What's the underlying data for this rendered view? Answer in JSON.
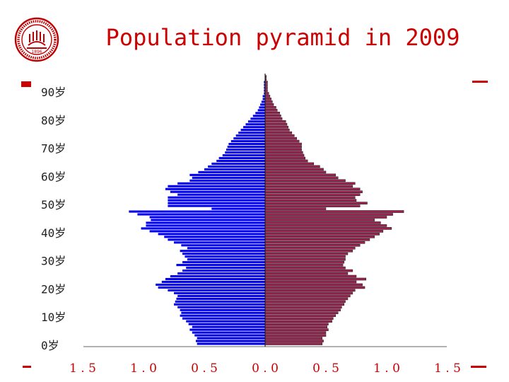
{
  "slide": {
    "title": "Population pyramid in 2009",
    "accent_color": "#cc0000",
    "logo": {
      "icon": "university-seal-icon",
      "ring_text": "SHANGHAI JIAO TONG UNIVERSITY",
      "year": "1896"
    }
  },
  "chart_data": {
    "type": "bar",
    "orientation": "horizontal",
    "layout": "population-pyramid",
    "title": "Population pyramid in 2009",
    "y_tick_labels": [
      "0岁",
      "10岁",
      "20岁",
      "30岁",
      "40岁",
      "50岁",
      "60岁",
      "70岁",
      "80岁",
      "90岁"
    ],
    "x_tick_labels": [
      "1.5",
      "1.0",
      "0.5",
      "0.0",
      "0.5",
      "1.0",
      "1.5"
    ],
    "xlim": [
      -1.5,
      1.5
    ],
    "ages": [
      0,
      1,
      2,
      3,
      4,
      5,
      6,
      7,
      8,
      9,
      10,
      11,
      12,
      13,
      14,
      15,
      16,
      17,
      18,
      19,
      20,
      21,
      22,
      23,
      24,
      25,
      26,
      27,
      28,
      29,
      30,
      31,
      32,
      33,
      34,
      35,
      36,
      37,
      38,
      39,
      40,
      41,
      42,
      43,
      44,
      45,
      46,
      47,
      48,
      49,
      50,
      51,
      52,
      53,
      54,
      55,
      56,
      57,
      58,
      59,
      60,
      61,
      62,
      63,
      64,
      65,
      66,
      67,
      68,
      69,
      70,
      71,
      72,
      73,
      74,
      75,
      76,
      77,
      78,
      79,
      80,
      81,
      82,
      83,
      84,
      85,
      86,
      87,
      88,
      89,
      90,
      91,
      92,
      93,
      94,
      95
    ],
    "series": [
      {
        "color": "#0000ee",
        "side": "left",
        "values": [
          0.56,
          0.57,
          0.56,
          0.58,
          0.6,
          0.62,
          0.6,
          0.63,
          0.65,
          0.68,
          0.7,
          0.69,
          0.7,
          0.72,
          0.75,
          0.74,
          0.73,
          0.72,
          0.75,
          0.8,
          0.88,
          0.9,
          0.85,
          0.82,
          0.78,
          0.72,
          0.68,
          0.65,
          0.73,
          0.68,
          0.64,
          0.66,
          0.68,
          0.7,
          0.64,
          0.69,
          0.75,
          0.8,
          0.83,
          0.88,
          0.95,
          1.02,
          0.98,
          0.98,
          0.94,
          0.95,
          1.05,
          1.12,
          0.44,
          0.8,
          0.8,
          0.8,
          0.8,
          0.72,
          0.78,
          0.82,
          0.8,
          0.72,
          0.62,
          0.6,
          0.62,
          0.55,
          0.5,
          0.47,
          0.44,
          0.4,
          0.38,
          0.35,
          0.33,
          0.32,
          0.31,
          0.3,
          0.28,
          0.26,
          0.24,
          0.22,
          0.2,
          0.18,
          0.16,
          0.14,
          0.12,
          0.1,
          0.08,
          0.06,
          0.05,
          0.04,
          0.03,
          0.02,
          0.02,
          0.01,
          0.01,
          0.01,
          0.01,
          0.01,
          0.0,
          0.0
        ]
      },
      {
        "color": "#9e2250",
        "side": "right",
        "values": [
          0.47,
          0.48,
          0.47,
          0.5,
          0.5,
          0.52,
          0.51,
          0.52,
          0.55,
          0.56,
          0.58,
          0.6,
          0.62,
          0.63,
          0.65,
          0.66,
          0.68,
          0.7,
          0.72,
          0.74,
          0.82,
          0.8,
          0.75,
          0.83,
          0.75,
          0.68,
          0.72,
          0.66,
          0.64,
          0.65,
          0.66,
          0.66,
          0.68,
          0.72,
          0.74,
          0.78,
          0.82,
          0.86,
          0.9,
          0.94,
          0.97,
          1.04,
          1.0,
          0.95,
          0.9,
          1.0,
          1.05,
          1.14,
          0.5,
          0.78,
          0.84,
          0.75,
          0.74,
          0.78,
          0.8,
          0.78,
          0.72,
          0.74,
          0.66,
          0.6,
          0.58,
          0.5,
          0.48,
          0.45,
          0.4,
          0.35,
          0.33,
          0.32,
          0.31,
          0.3,
          0.3,
          0.3,
          0.28,
          0.26,
          0.24,
          0.22,
          0.2,
          0.19,
          0.18,
          0.17,
          0.14,
          0.13,
          0.12,
          0.1,
          0.09,
          0.07,
          0.06,
          0.05,
          0.04,
          0.03,
          0.02,
          0.02,
          0.02,
          0.02,
          0.01,
          0.01
        ]
      }
    ],
    "grid": false,
    "legend": "none"
  }
}
